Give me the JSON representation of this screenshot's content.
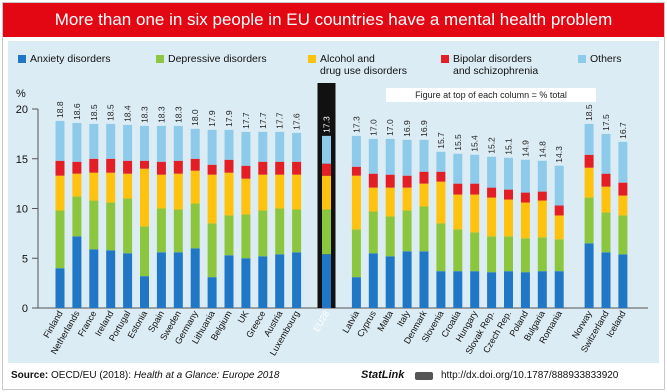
{
  "header": {
    "title": "More than one in six people in EU countries have a mental health problem"
  },
  "legend": [
    {
      "label": "Anxiety disorders",
      "color": "#1f77c6"
    },
    {
      "label": "Depressive disorders",
      "color": "#8cc63f"
    },
    {
      "label": "Alcohol and\ndrug use disorders",
      "color": "#ffc20e"
    },
    {
      "label": "Bipolar disorders\nand schizophrenia",
      "color": "#e31e24"
    },
    {
      "label": "Others",
      "color": "#8ecbea"
    }
  ],
  "note": "Figure at top of each column = % total",
  "footer": {
    "source_label": "Source:",
    "source_org": "OECD/EU (2018):",
    "source_publication": "Health at a Glance: Europe 2018",
    "statlink": "StatLink",
    "url": "http://dx.doi.org/10.1787/888933833920"
  },
  "chart_data": {
    "type": "bar",
    "stacked": true,
    "title": "More than one in six people in EU countries have a mental health problem",
    "ylabel": "%",
    "ylim": [
      0,
      20
    ],
    "yticks": [
      0,
      5,
      10,
      15,
      20
    ],
    "highlight": "EU28",
    "grid": false,
    "legend_position": "top",
    "groups": [
      {
        "categories": [
          "Finland",
          "Netherlands",
          "France",
          "Ireland",
          "Portugal",
          "Estonia",
          "Spain",
          "Sweden",
          "Germany",
          "Lithuania",
          "Belgium",
          "UK",
          "Greece",
          "Austria",
          "Luxembourg"
        ]
      },
      {
        "categories": [
          "EU28"
        ]
      },
      {
        "categories": [
          "Latvia",
          "Cyprus",
          "Malta",
          "Italy",
          "Denmark",
          "Slovenia",
          "Croatia",
          "Hungary",
          "Slovak Rep.",
          "Czech Rep.",
          "Poland",
          "Bulgaria",
          "Romania"
        ]
      },
      {
        "categories": [
          "Norway",
          "Switzerland",
          "Iceland"
        ]
      }
    ],
    "categories": [
      "Finland",
      "Netherlands",
      "France",
      "Ireland",
      "Portugal",
      "Estonia",
      "Spain",
      "Sweden",
      "Germany",
      "Lithuania",
      "Belgium",
      "UK",
      "Greece",
      "Austria",
      "Luxembourg",
      "EU28",
      "Latvia",
      "Cyprus",
      "Malta",
      "Italy",
      "Denmark",
      "Slovenia",
      "Croatia",
      "Hungary",
      "Slovak Rep.",
      "Czech Rep.",
      "Poland",
      "Bulgaria",
      "Romania",
      "Norway",
      "Switzerland",
      "Iceland"
    ],
    "totals": [
      "18.8",
      "18.6",
      "18.5",
      "18.5",
      "18.4",
      "18.3",
      "18.3",
      "18.3",
      "18.0",
      "17.9",
      "17.9",
      "17.7",
      "17.7",
      "17.7",
      "17.6",
      "17.3",
      "17.3",
      "17.0",
      "17.0",
      "16.9",
      "16.9",
      "15.7",
      "15.5",
      "15.4",
      "15.2",
      "15.1",
      "14.9",
      "14.8",
      "14.3",
      "18.5",
      "17.5",
      "16.7"
    ],
    "series": [
      {
        "name": "Anxiety disorders",
        "values": [
          4.0,
          7.2,
          5.9,
          5.8,
          5.5,
          3.2,
          5.6,
          5.6,
          6.0,
          3.1,
          5.3,
          5.0,
          5.2,
          5.4,
          5.6,
          5.4,
          3.1,
          5.5,
          5.2,
          5.7,
          5.7,
          3.7,
          3.7,
          3.7,
          3.6,
          3.7,
          3.6,
          3.7,
          3.7,
          6.5,
          5.6,
          5.4
        ]
      },
      {
        "name": "Depressive disorders",
        "values": [
          5.8,
          4.0,
          4.9,
          4.8,
          5.5,
          5.0,
          4.4,
          4.3,
          4.5,
          5.4,
          4.0,
          4.4,
          4.6,
          4.6,
          4.3,
          4.5,
          4.8,
          4.2,
          4.0,
          4.1,
          4.5,
          4.8,
          4.2,
          3.9,
          3.6,
          3.5,
          3.4,
          3.4,
          3.2,
          4.6,
          4.0,
          3.9
        ]
      },
      {
        "name": "Alcohol and drug use disorders",
        "values": [
          3.5,
          2.3,
          2.8,
          3.0,
          2.5,
          5.8,
          3.4,
          3.6,
          3.3,
          4.9,
          4.3,
          3.6,
          3.6,
          3.4,
          3.5,
          3.4,
          5.4,
          2.4,
          2.9,
          2.3,
          2.3,
          4.2,
          3.5,
          3.8,
          3.9,
          3.7,
          3.6,
          3.7,
          2.4,
          3.0,
          2.6,
          2.0
        ]
      },
      {
        "name": "Bipolar disorders and schizophrenia",
        "values": [
          1.5,
          1.2,
          1.4,
          1.4,
          1.3,
          0.8,
          1.3,
          1.3,
          1.2,
          1.0,
          1.3,
          1.3,
          1.3,
          1.3,
          1.3,
          1.2,
          0.9,
          1.4,
          1.3,
          1.2,
          1.2,
          1.0,
          1.1,
          1.1,
          1.0,
          1.0,
          1.0,
          0.9,
          1.0,
          1.3,
          1.3,
          1.3
        ]
      },
      {
        "name": "Others",
        "values": [
          4.0,
          3.9,
          3.5,
          3.5,
          3.6,
          3.5,
          3.6,
          3.5,
          3.0,
          3.5,
          3.0,
          3.4,
          3.0,
          3.0,
          2.9,
          2.8,
          3.1,
          3.5,
          3.6,
          3.6,
          3.2,
          2.0,
          3.0,
          2.9,
          3.1,
          3.2,
          3.3,
          3.1,
          4.0,
          3.1,
          4.0,
          4.1
        ]
      }
    ]
  }
}
